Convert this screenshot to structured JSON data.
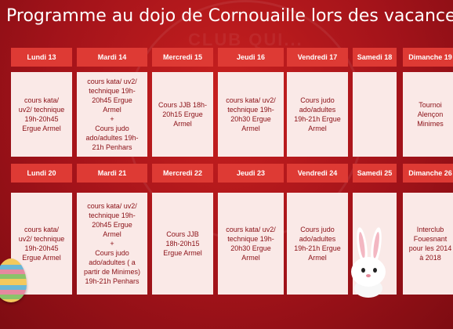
{
  "title": "Programme au dojo de Cornouaille lors des vacances",
  "watermark": "CLUB QUI...",
  "colors": {
    "background": "#b0161b",
    "header": "#de3a34",
    "cell": "#fae9e7",
    "text": "#8a1016"
  },
  "weeks": [
    {
      "days": [
        {
          "label": "Lundi 13",
          "text": "cours kata/\nuv2/ technique\n19h-20h45\nErgue Armel"
        },
        {
          "label": "Mardi 14",
          "text": "cours kata/ uv2/\ntechnique 19h-\n20h45 Ergue\nArmel\n+\nCours judo\nado/adultes 19h-\n21h Penhars"
        },
        {
          "label": "Mercredi 15",
          "text": "Cours JJB 18h-\n20h15 Ergue\nArmel"
        },
        {
          "label": "Jeudi 16",
          "text": "cours kata/ uv2/\ntechnique 19h-\n20h30 Ergue\nArmel"
        },
        {
          "label": "Vendredi 17",
          "text": "Cours judo\nado/adultes\n19h-21h Ergue\nArmel"
        },
        {
          "label": "Samedi 18",
          "text": ""
        },
        {
          "label": "Dimanche 19",
          "text": "Tournoi\nAlençon\nMinimes"
        }
      ]
    },
    {
      "days": [
        {
          "label": "Lundi 20",
          "text": "cours kata/\nuv2/ technique\n19h-20h45\nErgue Armel"
        },
        {
          "label": "Mardi 21",
          "text": "cours kata/ uv2/\ntechnique 19h-\n20h45 Ergue\nArmel\n+\nCours judo\nado/adultes ( a\npartir de Minimes)\n19h-21h Penhars"
        },
        {
          "label": "Mercredi 22",
          "text": "Cours JJB\n18h-20h15\nErgue Armel"
        },
        {
          "label": "Jeudi 23",
          "text": "cours kata/ uv2/\ntechnique 19h-\n20h30 Ergue\nArmel"
        },
        {
          "label": "Vendredi 24",
          "text": "Cours judo\nado/adultes\n19h-21h Ergue\nArmel"
        },
        {
          "label": "Samedi 25",
          "text": ""
        },
        {
          "label": "Dimanche 26",
          "text": "Interclub\nFouesnant\npour les 2014\nà 2018"
        }
      ]
    }
  ]
}
